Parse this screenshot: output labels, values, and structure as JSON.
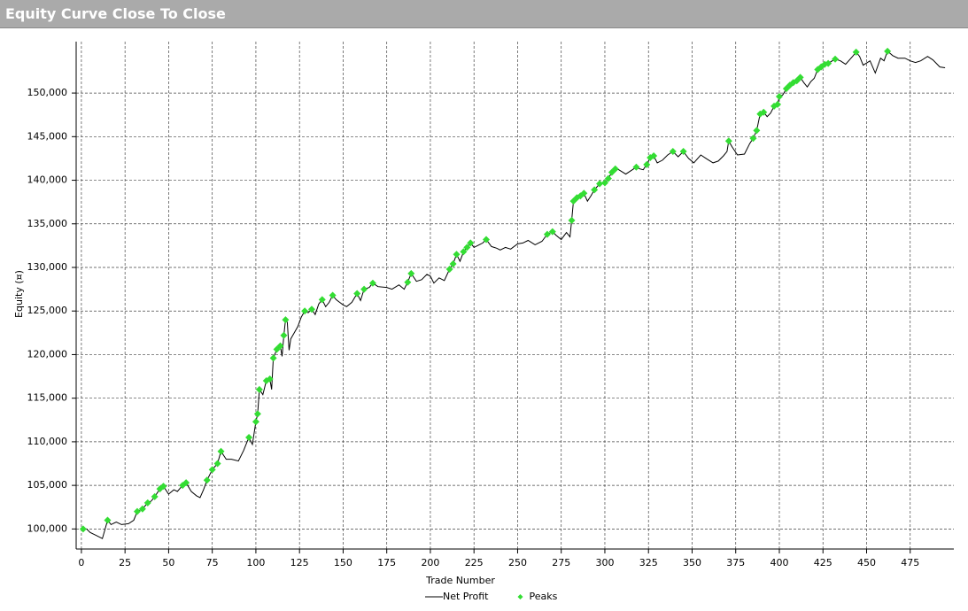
{
  "chart_data": {
    "type": "line",
    "title": "Equity Curve Close To Close",
    "x_label": "Trade Number",
    "y_label": "Equity (¤)",
    "xlim": [
      -3,
      500
    ],
    "ylim": [
      97700,
      155900
    ],
    "xticks": [
      0,
      25,
      50,
      75,
      100,
      125,
      150,
      175,
      200,
      225,
      250,
      275,
      300,
      325,
      350,
      375,
      400,
      425,
      450,
      475
    ],
    "yticks": [
      {
        "value": 100000,
        "label": "100,000"
      },
      {
        "value": 105000,
        "label": "105,000"
      },
      {
        "value": 110000,
        "label": "110,000"
      },
      {
        "value": 115000,
        "label": "115,000"
      },
      {
        "value": 120000,
        "label": "120,000"
      },
      {
        "value": 125000,
        "label": "125,000"
      },
      {
        "value": 130000,
        "label": "130,000"
      },
      {
        "value": 135000,
        "label": "135,000"
      },
      {
        "value": 140000,
        "label": "140,000"
      },
      {
        "value": 145000,
        "label": "145,000"
      },
      {
        "value": 150000,
        "label": "150,000"
      }
    ],
    "grid": true,
    "legend": "bottom",
    "series": [
      {
        "name": "Net Profit",
        "type": "line",
        "color": "#000000",
        "x": [
          0,
          3,
          5,
          8,
          12,
          15,
          17,
          20,
          23,
          27,
          30,
          32,
          35,
          38,
          40,
          42,
          45,
          47,
          50,
          53,
          55,
          58,
          60,
          63,
          66,
          68,
          70,
          72,
          75,
          78,
          80,
          83,
          86,
          90,
          93,
          96,
          98,
          100,
          101,
          102,
          104,
          106,
          108,
          109,
          110,
          112,
          114,
          115,
          116,
          117,
          118,
          119,
          120,
          122,
          124,
          126,
          128,
          130,
          132,
          134,
          136,
          138,
          140,
          142,
          144,
          146,
          148,
          150,
          152,
          155,
          158,
          160,
          162,
          165,
          167,
          170,
          175,
          178,
          182,
          185,
          187,
          189,
          192,
          195,
          198,
          200,
          202,
          205,
          208,
          211,
          213,
          215,
          217,
          219,
          221,
          223,
          225,
          228,
          230,
          232,
          235,
          238,
          240,
          243,
          246,
          250,
          253,
          256,
          260,
          264,
          267,
          270,
          272,
          275,
          278,
          280,
          281,
          282,
          284,
          286,
          288,
          290,
          292,
          294,
          297,
          300,
          302,
          304,
          306,
          308,
          312,
          315,
          318,
          320,
          322,
          324,
          326,
          328,
          330,
          333,
          336,
          339,
          342,
          345,
          348,
          351,
          355,
          358,
          362,
          365,
          368,
          370,
          371,
          373,
          376,
          380,
          383,
          385,
          387,
          389,
          391,
          393,
          395,
          397,
          399,
          400,
          402,
          404,
          406,
          408,
          410,
          412,
          414,
          416,
          418,
          420,
          422,
          424,
          426,
          428,
          432,
          435,
          438,
          442,
          444,
          446,
          448,
          452,
          455,
          458,
          460,
          462,
          465,
          468,
          472,
          475,
          478,
          481,
          485,
          488,
          492,
          495
        ],
        "values": [
          100000,
          100000,
          99600,
          99300,
          98900,
          101000,
          100500,
          100800,
          100500,
          100600,
          101000,
          102000,
          102300,
          103000,
          103200,
          103700,
          104600,
          104900,
          104000,
          104500,
          104300,
          105000,
          105300,
          104300,
          103800,
          103600,
          104500,
          105600,
          106800,
          107500,
          108900,
          108000,
          108000,
          107800,
          109000,
          110500,
          109700,
          112300,
          113200,
          116000,
          115400,
          117000,
          117200,
          116000,
          119600,
          120600,
          121000,
          119800,
          122200,
          124000,
          123700,
          120500,
          121800,
          122500,
          123200,
          124300,
          125000,
          124800,
          125200,
          124600,
          125800,
          126300,
          125500,
          126000,
          126800,
          126300,
          126000,
          125700,
          125500,
          126000,
          127000,
          126200,
          127500,
          127700,
          128200,
          127800,
          127700,
          127500,
          128000,
          127500,
          128300,
          129300,
          128400,
          128600,
          129200,
          129000,
          128200,
          128800,
          128500,
          129800,
          130400,
          131500,
          130700,
          131800,
          132300,
          132800,
          132300,
          132600,
          132800,
          133200,
          132400,
          132200,
          132000,
          132300,
          132100,
          132700,
          132800,
          133100,
          132600,
          133000,
          133800,
          134100,
          133700,
          133200,
          134000,
          133500,
          135400,
          137600,
          138000,
          138200,
          138500,
          137600,
          138200,
          138900,
          139600,
          139700,
          140200,
          140900,
          141300,
          141200,
          140700,
          141100,
          141500,
          141300,
          141200,
          141800,
          142600,
          142800,
          142000,
          142300,
          142900,
          143300,
          142700,
          143300,
          142500,
          142000,
          142900,
          142500,
          142000,
          142200,
          142800,
          143300,
          144500,
          143800,
          142900,
          143000,
          144200,
          144800,
          145700,
          147600,
          147800,
          147300,
          147700,
          148500,
          148700,
          149600,
          149800,
          150500,
          150900,
          151200,
          151400,
          151800,
          151200,
          150700,
          151300,
          151700,
          152700,
          153000,
          153300,
          153400,
          153900,
          153700,
          153300,
          154200,
          154700,
          154200,
          153200,
          153700,
          152300,
          154000,
          153700,
          154800,
          154300,
          154000,
          154000,
          153700,
          153500,
          153700,
          154200,
          153800,
          153000,
          152900
        ]
      },
      {
        "name": "Peaks",
        "type": "scatter",
        "color": "#33dd33",
        "x": [
          1,
          15,
          32,
          35,
          38,
          42,
          45,
          47,
          58,
          60,
          72,
          75,
          78,
          80,
          96,
          100,
          101,
          102,
          106,
          108,
          110,
          112,
          114,
          116,
          117,
          128,
          132,
          138,
          144,
          158,
          162,
          167,
          187,
          189,
          211,
          213,
          215,
          219,
          221,
          223,
          232,
          267,
          270,
          281,
          282,
          284,
          286,
          288,
          294,
          297,
          300,
          302,
          304,
          306,
          318,
          324,
          326,
          328,
          339,
          345,
          371,
          385,
          387,
          389,
          391,
          397,
          399,
          400,
          404,
          406,
          408,
          410,
          412,
          422,
          424,
          426,
          428,
          432,
          444,
          462
        ],
        "values": [
          100000,
          101000,
          102000,
          102300,
          103000,
          103700,
          104600,
          104900,
          105000,
          105300,
          105600,
          106800,
          107500,
          108900,
          110500,
          112300,
          113200,
          116000,
          117000,
          117200,
          119600,
          120600,
          121000,
          122200,
          124000,
          125000,
          125200,
          126300,
          126800,
          127000,
          127500,
          128200,
          128300,
          129300,
          129800,
          130400,
          131500,
          131800,
          132300,
          132800,
          133200,
          133800,
          134100,
          135400,
          137600,
          138000,
          138200,
          138500,
          138900,
          139600,
          139700,
          140200,
          140900,
          141300,
          141500,
          141800,
          142600,
          142800,
          143300,
          143300,
          144500,
          144800,
          145700,
          147600,
          147800,
          148500,
          148700,
          149600,
          150500,
          150900,
          151200,
          151400,
          151800,
          152700,
          153000,
          153300,
          153400,
          153900,
          154700,
          154800
        ]
      }
    ]
  }
}
